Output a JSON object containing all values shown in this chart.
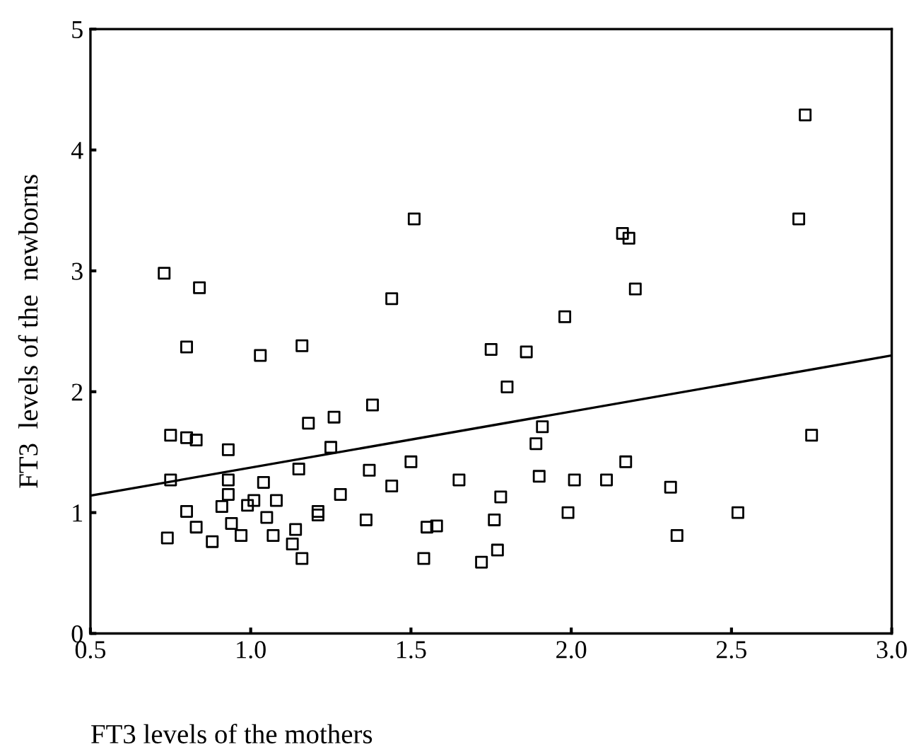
{
  "chart_data": {
    "type": "scatter",
    "xlabel": "FT3 levels of the mothers",
    "ylabel": "FT3  levels of the  newborns",
    "xlim": [
      0.5,
      3.0
    ],
    "ylim": [
      0,
      5
    ],
    "xticks": [
      0.5,
      {
        "value": 1,
        "label": "1.0"
      },
      1.5,
      {
        "value": 2,
        "label": "2.0"
      },
      2.5,
      {
        "value": 3,
        "label": "3.0"
      }
    ],
    "yticks": [
      0,
      1,
      2,
      3,
      4,
      5
    ],
    "grid": false,
    "legend": false,
    "series": [
      {
        "color": "#000000",
        "marker": "square",
        "x": [
          0.73,
          0.84,
          0.8,
          1.03,
          1.16,
          1.44,
          1.51,
          1.75,
          0.75,
          0.8,
          0.83,
          0.93,
          1.18,
          1.26,
          1.38,
          1.25,
          1.15,
          1.37,
          1.5,
          1.44,
          1.65,
          0.75,
          0.93,
          1.04,
          0.93,
          1.28,
          0.8,
          0.91,
          0.99,
          1.01,
          1.08,
          1.05,
          1.21,
          1.21,
          1.36,
          0.83,
          0.94,
          0.74,
          0.88,
          0.97,
          1.07,
          1.14,
          1.13,
          1.16,
          1.55,
          1.58,
          1.54,
          1.72,
          1.76,
          1.77,
          2.73,
          2.71,
          2.16,
          2.18,
          2.2,
          1.98,
          1.86,
          1.8,
          1.91,
          1.89,
          2.75,
          2.17,
          1.9,
          2.01,
          2.11,
          2.31,
          1.78,
          1.99,
          2.52,
          2.33
        ],
        "values": [
          2.98,
          2.86,
          2.37,
          2.3,
          2.38,
          2.77,
          3.43,
          2.35,
          1.64,
          1.62,
          1.6,
          1.52,
          1.74,
          1.79,
          1.89,
          1.54,
          1.36,
          1.35,
          1.42,
          1.22,
          1.27,
          1.27,
          1.27,
          1.25,
          1.15,
          1.15,
          1.01,
          1.05,
          1.06,
          1.1,
          1.1,
          0.96,
          1.01,
          0.98,
          0.94,
          0.88,
          0.91,
          0.79,
          0.76,
          0.81,
          0.81,
          0.86,
          0.74,
          0.62,
          0.88,
          0.89,
          0.62,
          0.59,
          0.94,
          0.69,
          4.29,
          3.43,
          3.31,
          3.27,
          2.85,
          2.62,
          2.33,
          2.04,
          1.71,
          1.57,
          1.64,
          1.42,
          1.3,
          1.27,
          1.27,
          1.21,
          1.13,
          1.0,
          1.0,
          0.81
        ]
      },
      {
        "type": "line",
        "color": "#000000",
        "line_style": "solid",
        "x": [
          0.5,
          3.0
        ],
        "values": [
          1.14,
          2.3
        ]
      }
    ]
  }
}
